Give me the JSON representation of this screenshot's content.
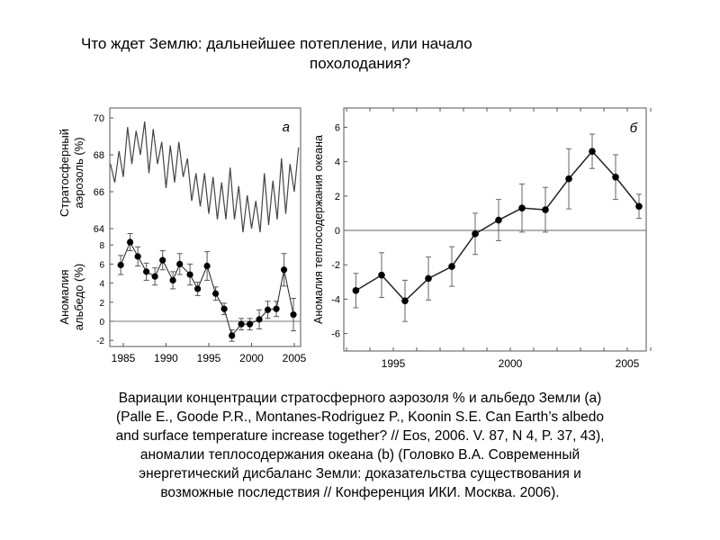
{
  "slide": {
    "title_line1": "Что ждет Землю: дальнейшее потепление, или начало",
    "title_line2": "похолодания?",
    "caption_lines": [
      "Вариации концентрации стратосферного аэрозоля % и альбедо Земли (а)",
      "(Palle E., Goode P.R., Montanes-Rodriguez P., Koonin S.E. Can Earth’s albedo",
      "and surface temperature increase together? // Eos, 2006. V. 87, N 4, P. 37, 43),",
      "аномалии теплосодержания океана (b) (Головко В.А. Современный",
      "энергетический дисбаланс Земли: доказательства существования и",
      "возможные последствия // Конференция ИКИ. Москва. 2006)."
    ]
  },
  "chart_data": [
    {
      "type": "line",
      "panel_label": "а",
      "ylabel_lines": [
        "Стратосферный",
        "аэрозоль (%)"
      ],
      "ylim": [
        64,
        70
      ],
      "yticks": [
        "64",
        "66",
        "68",
        "70"
      ],
      "x": [
        1983.5,
        1984,
        1984.5,
        1985,
        1985.5,
        1986,
        1986.5,
        1987,
        1987.5,
        1988,
        1988.5,
        1989,
        1989.5,
        1990,
        1990.5,
        1991,
        1991.5,
        1992,
        1992.5,
        1993,
        1993.5,
        1994,
        1994.5,
        1995,
        1995.5,
        1996,
        1996.5,
        1997,
        1997.5,
        1998,
        1998.5,
        1999,
        1999.5,
        2000,
        2000.5,
        2001,
        2001.5,
        2002,
        2002.5,
        2003,
        2003.5,
        2004,
        2004.5,
        2005,
        2005.5
      ],
      "values": [
        67.5,
        66.5,
        68.2,
        66.8,
        69.5,
        67.5,
        69.3,
        68.0,
        69.8,
        67.0,
        69.4,
        67.5,
        68.7,
        66.2,
        68.5,
        66.5,
        68.7,
        66.8,
        67.8,
        65.5,
        67.0,
        65.2,
        67.0,
        64.8,
        66.8,
        64.5,
        66.5,
        64.5,
        67.3,
        64.5,
        66.3,
        63.8,
        65.8,
        64.0,
        65.5,
        63.8,
        67.0,
        64.2,
        66.6,
        64.5,
        67.8,
        64.8,
        67.5,
        66.0,
        68.4
      ]
    },
    {
      "type": "scatter",
      "ylabel_lines": [
        "Аномалия",
        "альбедо (%)"
      ],
      "ylim": [
        -2.8,
        8.8
      ],
      "yticks": [
        "-2",
        "0",
        "2",
        "4",
        "6",
        "8"
      ],
      "xlim": [
        1983.2,
        2006.2
      ],
      "xticks": [
        "1985",
        "1990",
        "1995",
        "2000",
        "2005"
      ],
      "x": [
        1984.7,
        1985.8,
        1986.7,
        1987.7,
        1988.7,
        1989.6,
        1990.8,
        1991.6,
        1992.8,
        1993.7,
        1994.8,
        1995.8,
        1996.8,
        1997.7,
        1998.8,
        1999.8,
        2000.9,
        2001.9,
        2002.9,
        2003.8,
        2004.9
      ],
      "values": [
        5.9,
        8.3,
        6.8,
        5.2,
        4.7,
        6.4,
        4.3,
        6.0,
        4.9,
        3.4,
        5.8,
        2.9,
        1.3,
        -1.5,
        -0.3,
        -0.3,
        0.2,
        1.2,
        1.3,
        5.4,
        0.7
      ],
      "errors": [
        1.0,
        0.9,
        1.0,
        0.9,
        0.9,
        1.0,
        0.9,
        1.1,
        1.1,
        0.7,
        1.5,
        0.7,
        0.6,
        0.6,
        0.6,
        0.6,
        1.0,
        0.9,
        0.8,
        1.7,
        1.7
      ]
    },
    {
      "type": "line",
      "panel_label": "б",
      "ylabel": "Аномалия теплосодержания океана",
      "ylim": [
        -7,
        7
      ],
      "yticks": [
        "-6",
        "-4",
        "-2",
        "0",
        "2",
        "4",
        "6"
      ],
      "xlim": [
        1992.9,
        2006.0
      ],
      "xticks": [
        "1995",
        "2000",
        "2005"
      ],
      "x": [
        1993.4,
        1994.5,
        1995.5,
        1996.5,
        1997.5,
        1998.5,
        1999.5,
        2000.5,
        2001.5,
        2002.5,
        2003.5,
        2004.5,
        2005.5
      ],
      "values": [
        -3.5,
        -2.6,
        -4.1,
        -2.8,
        -2.1,
        -0.2,
        0.6,
        1.3,
        1.2,
        3.0,
        4.6,
        3.1,
        1.4
      ],
      "errors": [
        1.0,
        1.3,
        1.2,
        1.25,
        1.15,
        1.2,
        1.2,
        1.4,
        1.3,
        1.75,
        1.0,
        1.3,
        0.7
      ]
    }
  ]
}
